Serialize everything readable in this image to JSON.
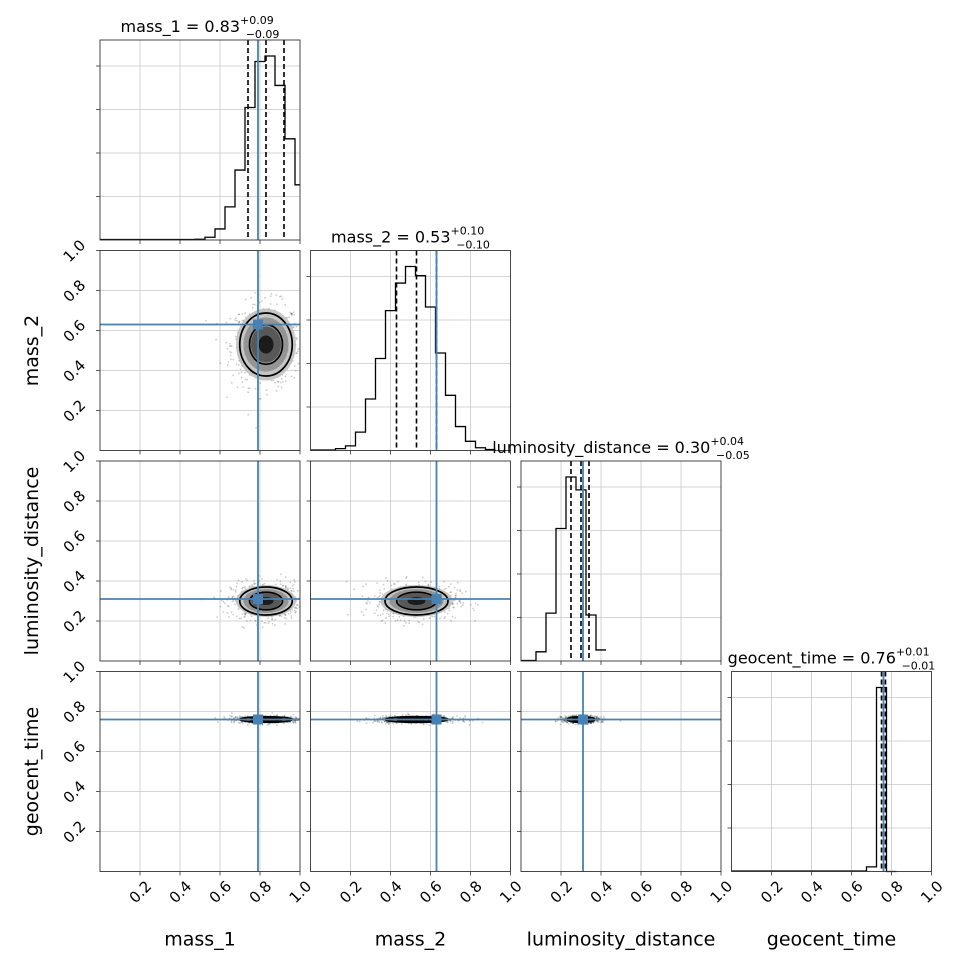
{
  "chart_data": {
    "type": "corner",
    "parameters": [
      {
        "label": "mass_1",
        "median": "0.83",
        "plus": "+0.09",
        "minus": "−0.09",
        "truth": 0.79,
        "q": [
          0.74,
          0.83,
          0.92
        ]
      },
      {
        "label": "mass_2",
        "median": "0.53",
        "plus": "+0.10",
        "minus": "−0.10",
        "truth": 0.63,
        "q": [
          0.43,
          0.53,
          0.63
        ]
      },
      {
        "label": "luminosity_distance",
        "median": "0.30",
        "plus": "+0.04",
        "minus": "−0.05",
        "truth": 0.31,
        "q": [
          0.25,
          0.3,
          0.34
        ]
      },
      {
        "label": "geocent_time",
        "median": "0.76",
        "plus": "+0.01",
        "minus": "−0.01",
        "truth": 0.76,
        "q": [
          0.75,
          0.76,
          0.77
        ]
      }
    ],
    "axis_range": [
      0,
      1
    ],
    "tick_labels": [
      "0.2",
      "0.4",
      "0.6",
      "0.8",
      "1.0"
    ],
    "tick_values": [
      0.2,
      0.4,
      0.6,
      0.8,
      1.0
    ],
    "grid": true,
    "truth_color": "#4682b4",
    "histograms": [
      {
        "bin_width": 0.05,
        "bins": [
          [
            0.5,
            0.004
          ],
          [
            0.55,
            0.015
          ],
          [
            0.6,
            0.06
          ],
          [
            0.65,
            0.18
          ],
          [
            0.7,
            0.38
          ],
          [
            0.75,
            0.72
          ],
          [
            0.8,
            0.97
          ],
          [
            0.85,
            1.0
          ],
          [
            0.9,
            0.84
          ],
          [
            0.95,
            0.55
          ],
          [
            1.0,
            0.3
          ]
        ]
      },
      {
        "bin_width": 0.05,
        "bins": [
          [
            0.15,
            0.01
          ],
          [
            0.2,
            0.025
          ],
          [
            0.25,
            0.1
          ],
          [
            0.3,
            0.28
          ],
          [
            0.35,
            0.5
          ],
          [
            0.4,
            0.76
          ],
          [
            0.45,
            0.91
          ],
          [
            0.5,
            1.0
          ],
          [
            0.55,
            0.95
          ],
          [
            0.6,
            0.78
          ],
          [
            0.65,
            0.53
          ],
          [
            0.7,
            0.3
          ],
          [
            0.75,
            0.13
          ],
          [
            0.8,
            0.05
          ],
          [
            0.85,
            0.015
          ],
          [
            0.9,
            0.005
          ]
        ]
      },
      {
        "bin_width": 0.05,
        "bins": [
          [
            0.1,
            0.05
          ],
          [
            0.15,
            0.26
          ],
          [
            0.2,
            0.72
          ],
          [
            0.25,
            1.0
          ],
          [
            0.3,
            0.93
          ],
          [
            0.35,
            0.25
          ],
          [
            0.4,
            0.06
          ]
        ]
      },
      {
        "bin_width": 0.05,
        "bins": [
          [
            0.7,
            0.025
          ],
          [
            0.75,
            1.0
          ],
          [
            0.8,
            0.0
          ]
        ]
      }
    ]
  }
}
